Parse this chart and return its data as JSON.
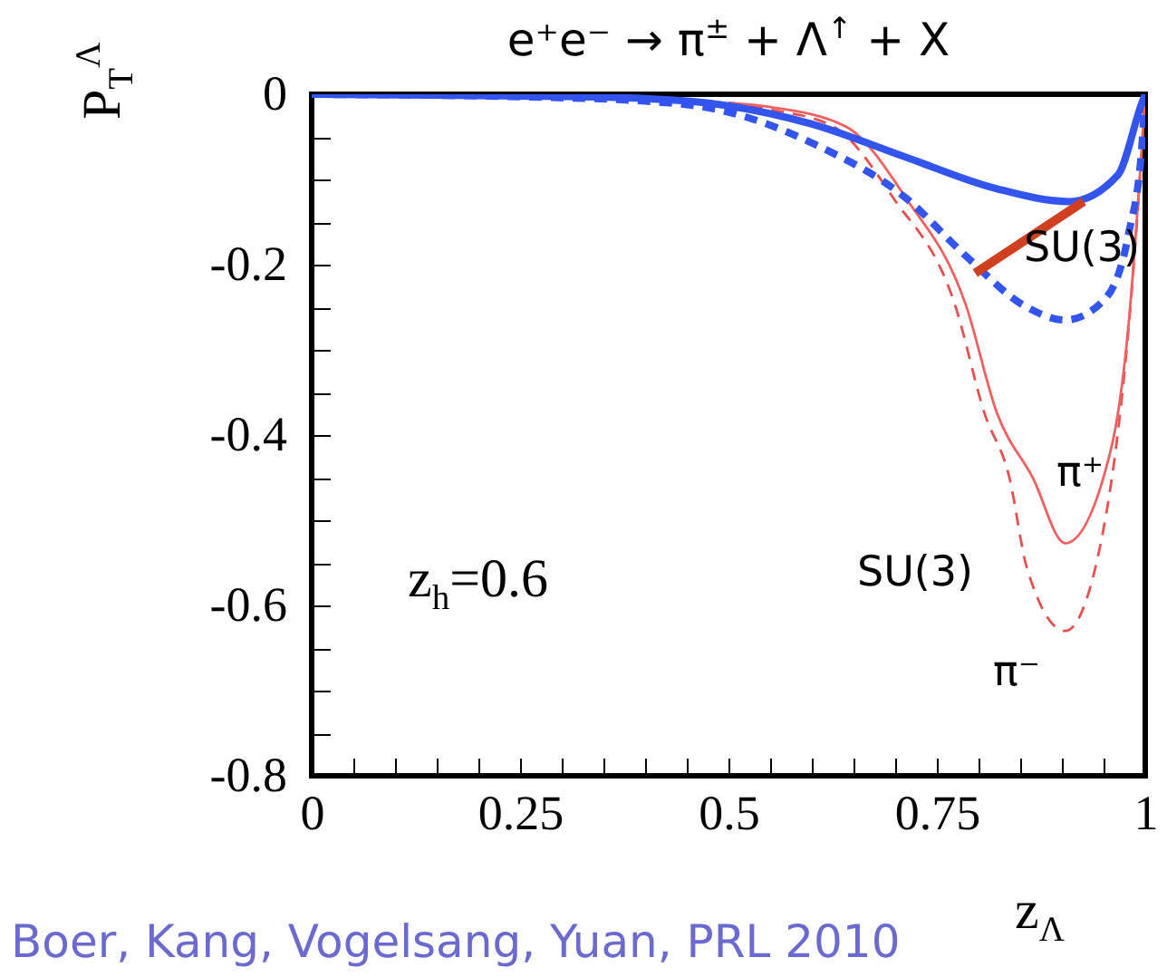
{
  "chart_data": {
    "type": "line",
    "title": "e⁺e⁻ → π$^{±}$ + Λ$^{↑}$ + X",
    "xlabel": "z$_{Λ}$",
    "ylabel": "P$_{T}$$^{Λ}$",
    "xlim": [
      0,
      1
    ],
    "ylim": [
      -0.8,
      0
    ],
    "xticks": [
      0,
      {
        "value": 0.05,
        "label": null
      },
      {
        "value": 0.1,
        "label": null
      },
      {
        "value": 0.15,
        "label": null
      },
      {
        "value": 0.2,
        "label": null
      },
      0.25,
      {
        "value": 0.3,
        "label": null
      },
      {
        "value": 0.35,
        "label": null
      },
      {
        "value": 0.4,
        "label": null
      },
      {
        "value": 0.45,
        "label": null
      },
      0.5,
      {
        "value": 0.55,
        "label": null
      },
      {
        "value": 0.6,
        "label": null
      },
      {
        "value": 0.65,
        "label": null
      },
      {
        "value": 0.7,
        "label": null
      },
      0.75,
      {
        "value": 0.8,
        "label": null
      },
      {
        "value": 0.85,
        "label": null
      },
      {
        "value": 0.9,
        "label": null
      },
      {
        "value": 0.95,
        "label": null
      },
      1
    ],
    "yticks": [
      0,
      {
        "value": -0.05,
        "label": null
      },
      {
        "value": -0.1,
        "label": null
      },
      {
        "value": -0.15,
        "label": null
      },
      -0.2,
      {
        "value": -0.25,
        "label": null
      },
      {
        "value": -0.3,
        "label": null
      },
      {
        "value": -0.35,
        "label": null
      },
      -0.4,
      {
        "value": -0.45,
        "label": null
      },
      {
        "value": -0.5,
        "label": null
      },
      {
        "value": -0.55,
        "label": null
      },
      -0.6,
      {
        "value": -0.65,
        "label": null
      },
      {
        "value": -0.7,
        "label": null
      },
      {
        "value": -0.75,
        "label": null
      },
      -0.8
    ],
    "grid": false,
    "series": [
      {
        "color": "#e85050",
        "line_style": "dashed",
        "x": [
          0.5,
          0.55,
          0.626,
          0.698,
          0.772,
          0.807,
          0.837,
          0.858,
          0.904,
          0.948,
          0.989,
          1
        ],
        "values": [
          -0.01,
          -0.018,
          -0.038,
          -0.122,
          -0.248,
          -0.374,
          -0.45,
          -0.556,
          -0.63,
          -0.52,
          -0.164,
          0
        ]
      },
      {
        "color": "#f06060",
        "line_style": "solid",
        "x": [
          0.5,
          0.55,
          0.641,
          0.713,
          0.785,
          0.822,
          0.865,
          0.904,
          0.959,
          0.98,
          0.996,
          1
        ],
        "values": [
          -0.01,
          -0.015,
          -0.038,
          -0.122,
          -0.248,
          -0.374,
          -0.45,
          -0.527,
          -0.416,
          -0.27,
          -0.06,
          0
        ]
      },
      {
        "color": "#3355ee",
        "line_style": "dashed",
        "x": [
          0,
          0.25,
          0.4,
          0.496,
          0.604,
          0.713,
          0.785,
          0.858,
          0.904,
          0.952,
          0.98,
          0.996,
          1
        ],
        "values": [
          0,
          -0.003,
          -0.008,
          -0.02,
          -0.059,
          -0.122,
          -0.19,
          -0.25,
          -0.265,
          -0.24,
          -0.164,
          -0.06,
          0
        ]
      },
      {
        "color": "#3355ee",
        "line_style": "solid",
        "x": [
          0,
          0.25,
          0.4,
          0.496,
          0.6,
          0.713,
          0.822,
          0.909,
          0.967,
          0.996,
          1
        ],
        "values": [
          0,
          -0.002,
          -0.005,
          -0.013,
          -0.035,
          -0.074,
          -0.111,
          -0.126,
          -0.095,
          -0.01,
          0
        ]
      },
      {
        "color": "#d04020",
        "line_style": "solid",
        "x": [
          0.796,
          0.926
        ],
        "values": [
          -0.21,
          -0.126
        ]
      }
    ],
    "annotations": [
      "SU(3)",
      "π⁺",
      "SU(3)",
      "π⁻",
      "z$_{h}$=0.6",
      "Boer, Kang, Vogelsang, Yuan, PRL 2010"
    ]
  }
}
